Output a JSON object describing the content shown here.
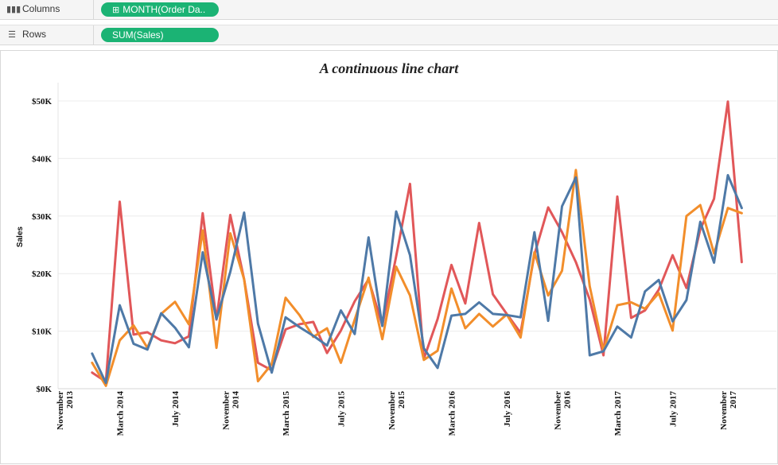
{
  "columns_shelf": {
    "label": "Columns",
    "icon": "columns-icon",
    "pill": "MONTH(Order Da..",
    "pill_color": "#1bb374"
  },
  "rows_shelf": {
    "label": "Rows",
    "icon": "rows-icon",
    "pill": "SUM(Sales)",
    "pill_color": "#1bb374"
  },
  "chart_data": {
    "type": "line",
    "title": "A continuous line chart",
    "ylabel": "Sales",
    "xlabel": "",
    "ylim": [
      0,
      50000
    ],
    "yticks": [
      0,
      10000,
      20000,
      30000,
      40000,
      50000
    ],
    "ytick_labels": [
      "$0K",
      "$10K",
      "$20K",
      "$30K",
      "$40K",
      "$50K"
    ],
    "xlim": [
      "2013-11",
      "2017-12"
    ],
    "xtick_labels": [
      {
        "at": "2013-11",
        "lines": [
          "November",
          "2013"
        ]
      },
      {
        "at": "2014-03",
        "lines": [
          "March 2014"
        ]
      },
      {
        "at": "2014-07",
        "lines": [
          "July 2014"
        ]
      },
      {
        "at": "2014-11",
        "lines": [
          "November",
          "2014"
        ]
      },
      {
        "at": "2015-03",
        "lines": [
          "March 2015"
        ]
      },
      {
        "at": "2015-07",
        "lines": [
          "July 2015"
        ]
      },
      {
        "at": "2015-11",
        "lines": [
          "November",
          "2015"
        ]
      },
      {
        "at": "2016-03",
        "lines": [
          "March 2016"
        ]
      },
      {
        "at": "2016-07",
        "lines": [
          "July 2016"
        ]
      },
      {
        "at": "2016-11",
        "lines": [
          "November",
          "2016"
        ]
      },
      {
        "at": "2017-03",
        "lines": [
          "March 2017"
        ]
      },
      {
        "at": "2017-07",
        "lines": [
          "July 2017"
        ]
      },
      {
        "at": "2017-11",
        "lines": [
          "November",
          "2017"
        ]
      }
    ],
    "grid": true,
    "legend": "none",
    "x": [
      "2014-01",
      "2014-02",
      "2014-03",
      "2014-04",
      "2014-05",
      "2014-06",
      "2014-07",
      "2014-08",
      "2014-09",
      "2014-10",
      "2014-11",
      "2014-12",
      "2015-01",
      "2015-02",
      "2015-03",
      "2015-04",
      "2015-05",
      "2015-06",
      "2015-07",
      "2015-08",
      "2015-09",
      "2015-10",
      "2015-11",
      "2015-12",
      "2016-01",
      "2016-02",
      "2016-03",
      "2016-04",
      "2016-05",
      "2016-06",
      "2016-07",
      "2016-08",
      "2016-09",
      "2016-10",
      "2016-11",
      "2016-12",
      "2017-01",
      "2017-02",
      "2017-03",
      "2017-04",
      "2017-05",
      "2017-06",
      "2017-07",
      "2017-08",
      "2017-09",
      "2017-10",
      "2017-11",
      "2017-12"
    ],
    "series": [
      {
        "color": "#e15759",
        "values": [
          2800,
          1200,
          32500,
          9400,
          9800,
          8400,
          7900,
          9100,
          30500,
          12000,
          30200,
          19000,
          4500,
          3200,
          10300,
          11200,
          11600,
          6200,
          10100,
          15200,
          19000,
          11000,
          23000,
          35600,
          5200,
          12100,
          21500,
          14800,
          28800,
          16400,
          13000,
          9700,
          23300,
          31500,
          27200,
          22000,
          15500,
          5800,
          33400,
          12300,
          13600,
          17200,
          23200,
          17500,
          27700,
          33000,
          49900,
          22000
        ]
      },
      {
        "color": "#f28e2b",
        "values": [
          4500,
          500,
          8400,
          11000,
          7100,
          13000,
          15100,
          11200,
          27500,
          7100,
          27000,
          19000,
          1300,
          4300,
          15800,
          12800,
          9000,
          10500,
          4500,
          12000,
          19300,
          8600,
          21200,
          16200,
          5000,
          6600,
          17400,
          10500,
          13000,
          10800,
          12900,
          8900,
          23700,
          16200,
          20500,
          38000,
          17800,
          6600,
          14500,
          15000,
          13900,
          16600,
          10100,
          30000,
          31900,
          23500,
          31400,
          30500
        ]
      },
      {
        "color": "#4e79a7",
        "values": [
          6100,
          1000,
          14500,
          7800,
          6800,
          13100,
          10600,
          7200,
          23700,
          12100,
          20300,
          30600,
          11300,
          2800,
          12400,
          10700,
          9200,
          7500,
          13600,
          9500,
          26300,
          10900,
          30800,
          23200,
          7000,
          3600,
          12700,
          13000,
          15000,
          13000,
          12800,
          12400,
          27200,
          11800,
          31700,
          36700,
          5800,
          6500,
          10800,
          8900,
          16900,
          18900,
          11700,
          15400,
          29000,
          21900,
          37100,
          31400
        ]
      }
    ]
  }
}
